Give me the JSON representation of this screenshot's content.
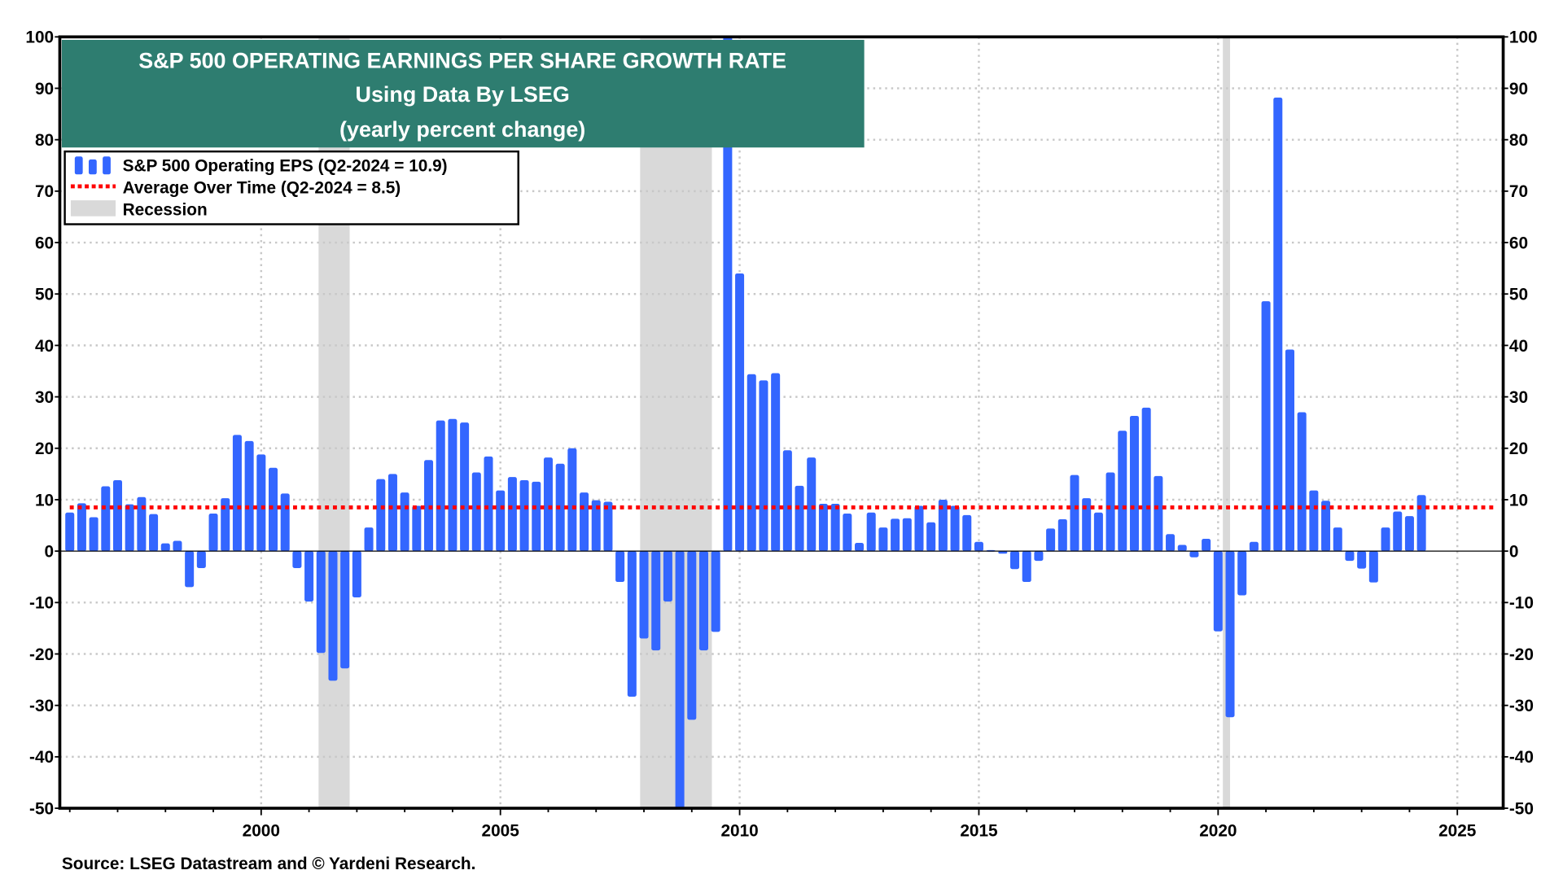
{
  "chart_data": {
    "type": "bar",
    "title": "S&P 500 OPERATING EARNINGS PER SHARE GROWTH RATE",
    "subtitle": "Using Data By LSEG",
    "subtitle2": "(yearly percent change)",
    "source": "Source: LSEG Datastream and © Yardeni Research.",
    "xlim": [
      1995.8,
      2026
    ],
    "ylim": [
      -50,
      100
    ],
    "y_ticks": [
      -50,
      -40,
      -30,
      -20,
      -10,
      0,
      10,
      20,
      30,
      40,
      50,
      60,
      70,
      80,
      90,
      100
    ],
    "x_ticks": [
      2000,
      2005,
      2010,
      2015,
      2020,
      2025
    ],
    "grid": true,
    "axes": "left and right, identical",
    "legend_placement": "top-left",
    "legend": [
      {
        "label": "S&P 500 Operating EPS (Q2-2024 = 10.9)",
        "type": "bar"
      },
      {
        "label": "Average Over Time  (Q2-2024 = 8.5)",
        "type": "dotted-line"
      },
      {
        "label": "Recession",
        "type": "shade"
      }
    ],
    "average": 8.5,
    "recessions": [
      [
        2001.2,
        2001.85
      ],
      [
        2007.92,
        2009.42
      ],
      [
        2020.1,
        2020.25
      ]
    ],
    "series": [
      {
        "name": "S&P 500 Operating EPS",
        "start": "1996-Q1",
        "frequency": "quarterly",
        "values": [
          7.5,
          9.3,
          6.6,
          12.6,
          13.8,
          9.1,
          10.5,
          7.2,
          1.5,
          2.0,
          -7.0,
          -3.3,
          7.3,
          10.3,
          22.6,
          21.4,
          18.8,
          16.2,
          11.2,
          -3.3,
          -9.8,
          -19.8,
          -25.2,
          -22.8,
          -9.0,
          4.6,
          14.0,
          15.0,
          11.4,
          8.8,
          17.7,
          25.4,
          25.7,
          25.0,
          15.3,
          18.4,
          11.8,
          14.4,
          13.8,
          13.5,
          18.2,
          17.0,
          20.0,
          11.4,
          9.9,
          9.6,
          -6.0,
          -28.3,
          -17.0,
          -19.3,
          -9.8,
          -50,
          -32.8,
          -19.3,
          -15.7,
          100,
          54.0,
          34.4,
          33.2,
          34.6,
          19.6,
          12.7,
          18.2,
          9.2,
          9.2,
          7.3,
          1.6,
          7.5,
          4.6,
          6.3,
          6.4,
          8.8,
          5.6,
          10.0,
          8.8,
          7.0,
          1.8,
          0.2,
          -0.5,
          -3.5,
          -6.0,
          -1.9,
          4.4,
          6.2,
          14.8,
          10.3,
          7.5,
          15.3,
          23.4,
          26.3,
          27.9,
          14.6,
          3.3,
          1.2,
          -1.2,
          2.4,
          -15.6,
          -32.3,
          -8.6,
          1.8,
          48.6,
          88.2,
          39.2,
          27.0,
          11.8,
          9.8,
          4.6,
          -1.9,
          -3.4,
          -6.1,
          4.6,
          7.7,
          6.8,
          10.9
        ]
      }
    ],
    "colors": {
      "bars": "#3366FF",
      "average": "#FF0000",
      "recession": "#D9D9D9",
      "title_box": "#2E7D70",
      "grid": "#C8C8C8"
    }
  }
}
